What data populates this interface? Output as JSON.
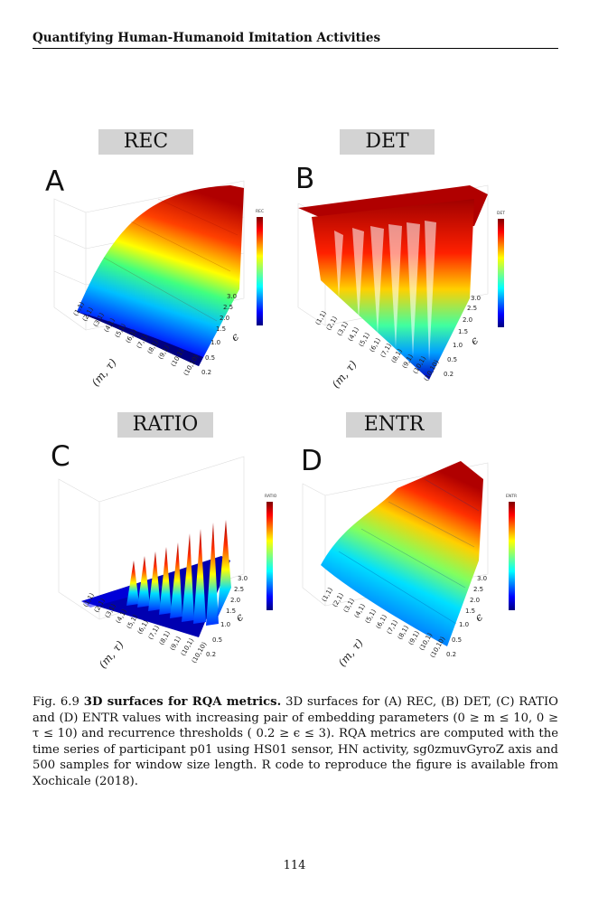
{
  "header": {
    "title": "Quantifying Human-Humanoid Imitation Activities"
  },
  "panels": [
    {
      "letter": "A",
      "metric": "REC",
      "colorbar_title": "REC"
    },
    {
      "letter": "B",
      "metric": "DET",
      "colorbar_title": "DET"
    },
    {
      "letter": "C",
      "metric": "RATIO",
      "colorbar_title": "RATIO"
    },
    {
      "letter": "D",
      "metric": "ENTR",
      "colorbar_title": "ENTR"
    }
  ],
  "axes": {
    "x_label": "(m, τ)",
    "y_label": "ϵ",
    "eps_ticks": [
      "3.0",
      "2.5",
      "2.0",
      "1.5",
      "1.0",
      "0.5",
      "0.2"
    ],
    "pair_ticks": [
      "(1,1)",
      "(2,1)",
      "(3,1)",
      "(4,1)",
      "(5,1)",
      "(6,1)",
      "(7,1)",
      "(8,1)",
      "(9,1)",
      "(10,1)",
      "(10,10)"
    ]
  },
  "caption": {
    "prefix": "Fig. 6.9",
    "bold": "3D surfaces for RQA metrics.",
    "text": "3D surfaces for (A) REC, (B) DET, (C) RATIO and (D) ENTR values with increasing pair of embedding parameters (0 ≥ m ≤ 10, 0 ≥ τ ≤ 10) and recurrence thresholds ( 0.2 ≥ ϵ ≤ 3). RQA metrics are computed with the time series of participant p01 using HS01 sensor, HN activity, sg0zmuvGyroZ axis and 500 samples for window size length. R code to reproduce the figure is available from Xochicale (2018)."
  },
  "page_number": "114",
  "colors": {
    "jet_low": "#00007f",
    "jet_high": "#7f0000",
    "label_bg": "#d3d3d3"
  }
}
